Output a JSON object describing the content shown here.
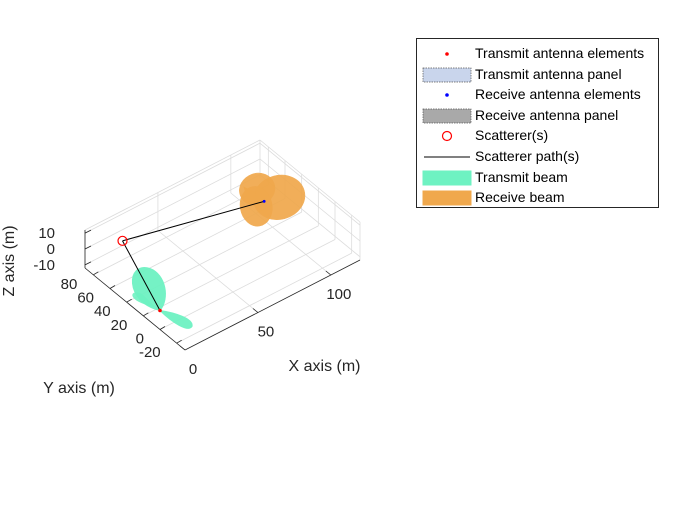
{
  "chart_data": {
    "type": "scatter3d",
    "xlabel": "X axis (m)",
    "ylabel": "Y axis (m)",
    "zlabel": "Z axis (m)",
    "x_ticks": [
      "0",
      "50",
      "100"
    ],
    "y_ticks": [
      "80",
      "60",
      "40",
      "20",
      "0",
      "-20"
    ],
    "z_ticks": [
      "10",
      "0",
      "-10"
    ],
    "xlim": [
      0,
      120
    ],
    "ylim": [
      -30,
      90
    ],
    "zlim": [
      -12,
      12
    ],
    "grid": true,
    "legend_position": "top-right",
    "legend": [
      {
        "label": "Transmit antenna elements",
        "kind": "dot",
        "color": "#ff0000"
      },
      {
        "label": "Transmit antenna panel",
        "kind": "panel",
        "color": "#c9d5ec"
      },
      {
        "label": "Receive antenna elements",
        "kind": "dot",
        "color": "#0000ff"
      },
      {
        "label": "Receive antenna panel",
        "kind": "panel",
        "color": "#a9a9a9"
      },
      {
        "label": "Scatterer(s)",
        "kind": "circle",
        "color": "#ff0000"
      },
      {
        "label": "Scatterer path(s)",
        "kind": "line",
        "color": "#000000"
      },
      {
        "label": "Transmit beam",
        "kind": "fill",
        "color": "#6ef2c2"
      },
      {
        "label": "Receive beam",
        "kind": "fill",
        "color": "#f0a84c"
      }
    ],
    "transmitter": {
      "x": 0,
      "y": 0,
      "z": 0
    },
    "receiver": {
      "x": 100,
      "y": 50,
      "z": 0
    },
    "scatterer": {
      "x": 20,
      "y": 80,
      "z": 0
    },
    "colors": {
      "tx_beam": "#6ef2c2",
      "rx_beam": "#f0a84c",
      "scatterer": "#ff0000",
      "path": "#000000"
    }
  }
}
